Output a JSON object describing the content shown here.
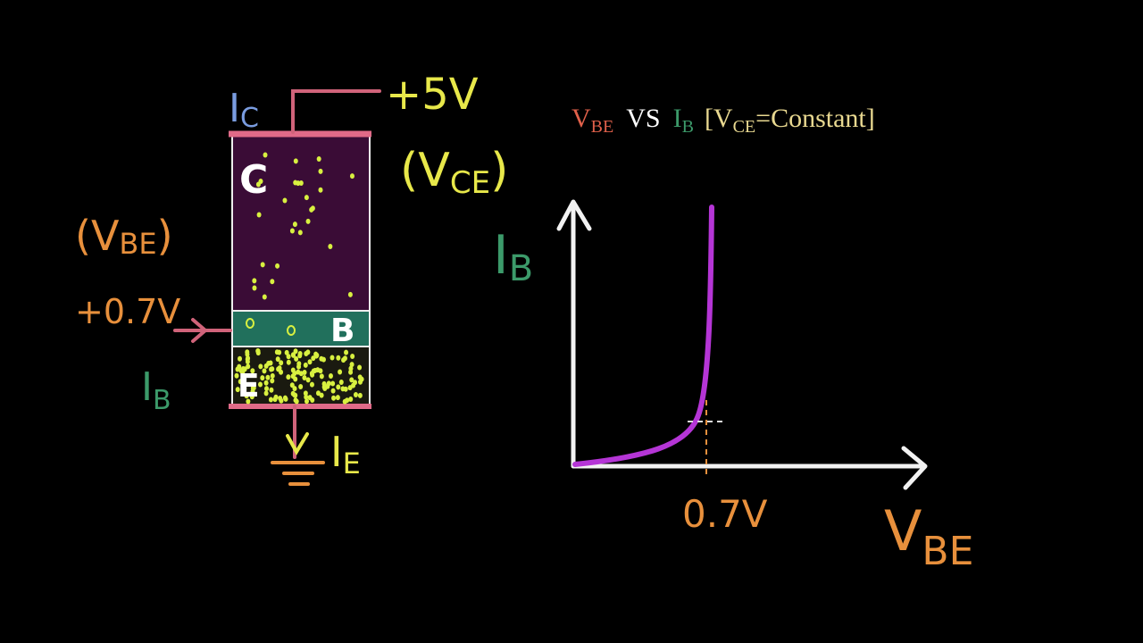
{
  "circuit": {
    "collector_current": {
      "symbol": "I",
      "sub": "C"
    },
    "supply": "+5V",
    "vce": {
      "open": "(V",
      "sub": "CE",
      "close": ")"
    },
    "regions": [
      "C",
      "B",
      "E"
    ],
    "vbe": {
      "open": "(V",
      "sub": "BE",
      "close": ")"
    },
    "base_voltage": "+0.7V",
    "base_current": {
      "symbol": "I",
      "sub": "B"
    },
    "emitter_current": {
      "symbol": "I",
      "sub": "E"
    }
  },
  "graph": {
    "title": {
      "vbe": {
        "symbol": "V",
        "sub": "BE"
      },
      "vs": "VS",
      "ib": {
        "symbol": "I",
        "sub": "B"
      },
      "condition": {
        "open": "[V",
        "sub": "CE",
        "close": "=Constant]"
      }
    },
    "y_label": {
      "symbol": "I",
      "sub": "B"
    },
    "x_label": {
      "symbol": "V",
      "sub": "BE"
    },
    "knee_label": "0.7V"
  }
}
